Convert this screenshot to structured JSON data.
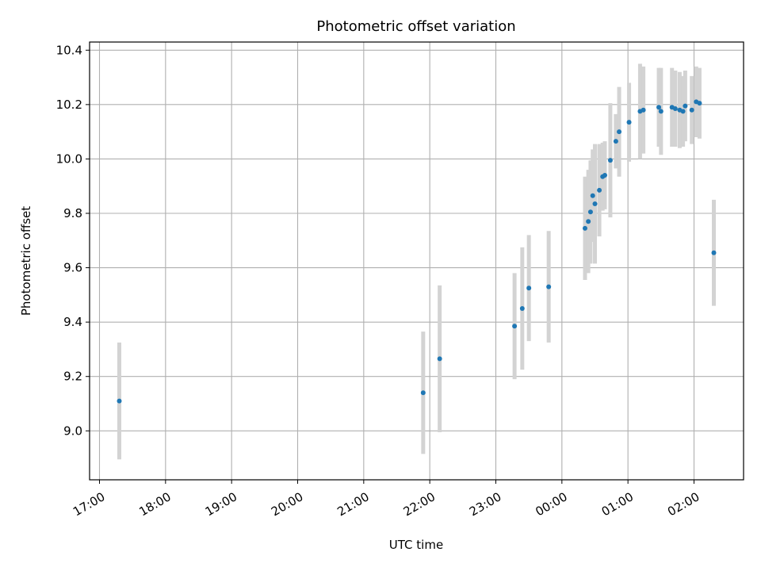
{
  "chart_data": {
    "type": "scatter",
    "title": "Photometric offset variation",
    "xlabel": "UTC time",
    "ylabel": "Photometric offset",
    "x_ticks": [
      "17:00",
      "18:00",
      "19:00",
      "20:00",
      "21:00",
      "22:00",
      "23:00",
      "00:00",
      "01:00",
      "02:00"
    ],
    "y_ticks": [
      "9.0",
      "9.2",
      "9.4",
      "9.6",
      "9.8",
      "10.0",
      "10.2",
      "10.4"
    ],
    "xlim": [
      "16:51",
      "02:45"
    ],
    "ylim": [
      8.82,
      10.43
    ],
    "grid": true,
    "point_color": "#1f77b4",
    "errorbar_color": "#d3d3d3",
    "points": [
      {
        "x": "17:18",
        "y": 9.11,
        "err": 0.215
      },
      {
        "x": "21:54",
        "y": 9.14,
        "err": 0.225
      },
      {
        "x": "22:09",
        "y": 9.265,
        "err": 0.27
      },
      {
        "x": "23:17",
        "y": 9.385,
        "err": 0.195
      },
      {
        "x": "23:24",
        "y": 9.45,
        "err": 0.225
      },
      {
        "x": "23:30",
        "y": 9.525,
        "err": 0.195
      },
      {
        "x": "23:48",
        "y": 9.53,
        "err": 0.205
      },
      {
        "x": "00:21",
        "y": 9.745,
        "err": 0.19
      },
      {
        "x": "00:24",
        "y": 9.77,
        "err": 0.19
      },
      {
        "x": "00:26",
        "y": 9.805,
        "err": 0.19
      },
      {
        "x": "00:28",
        "y": 9.865,
        "err": 0.17
      },
      {
        "x": "00:30",
        "y": 9.835,
        "err": 0.22
      },
      {
        "x": "00:34",
        "y": 9.885,
        "err": 0.17
      },
      {
        "x": "00:37",
        "y": 9.935,
        "err": 0.125
      },
      {
        "x": "00:39",
        "y": 9.94,
        "err": 0.125
      },
      {
        "x": "00:44",
        "y": 9.995,
        "err": 0.21
      },
      {
        "x": "00:49",
        "y": 10.065,
        "err": 0.1
      },
      {
        "x": "00:52",
        "y": 10.1,
        "err": 0.165
      },
      {
        "x": "01:01",
        "y": 10.135,
        "err": 0.145
      },
      {
        "x": "01:11",
        "y": 10.175,
        "err": 0.175
      },
      {
        "x": "01:14",
        "y": 10.18,
        "err": 0.16
      },
      {
        "x": "01:28",
        "y": 10.19,
        "err": 0.145
      },
      {
        "x": "01:30",
        "y": 10.175,
        "err": 0.16
      },
      {
        "x": "01:40",
        "y": 10.19,
        "err": 0.145
      },
      {
        "x": "01:43",
        "y": 10.185,
        "err": 0.14
      },
      {
        "x": "01:47",
        "y": 10.18,
        "err": 0.14
      },
      {
        "x": "01:50",
        "y": 10.175,
        "err": 0.13
      },
      {
        "x": "01:52",
        "y": 10.195,
        "err": 0.13
      },
      {
        "x": "01:58",
        "y": 10.18,
        "err": 0.125
      },
      {
        "x": "02:02",
        "y": 10.21,
        "err": 0.13
      },
      {
        "x": "02:05",
        "y": 10.205,
        "err": 0.13
      },
      {
        "x": "02:18",
        "y": 9.655,
        "err": 0.195
      }
    ]
  }
}
